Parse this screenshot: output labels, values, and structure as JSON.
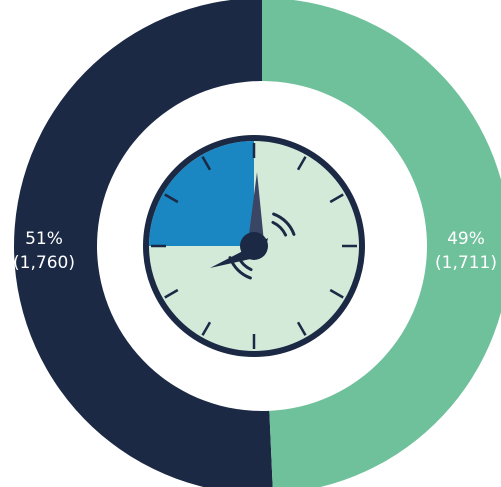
{
  "chart_data": {
    "type": "pie",
    "style": "donut",
    "series": [
      {
        "values": [
          1760,
          1711
        ],
        "percent_labels": [
          "51%",
          "49%"
        ],
        "count_labels": [
          "(1,760)",
          "(1,711)"
        ],
        "colors": [
          "#1b2945",
          "#6fc19b"
        ]
      }
    ],
    "center_icon": "clock-icon",
    "clock_colors": {
      "face": "#d3ead9",
      "highlight": "#1a86c2",
      "rim": "#1b2945",
      "hands": "#1b2945",
      "minute_hand_fill": "#3a4664"
    }
  }
}
